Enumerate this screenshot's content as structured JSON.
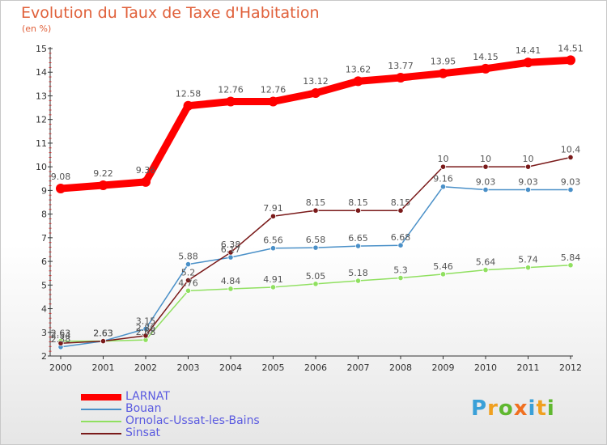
{
  "chart_data": {
    "type": "line",
    "title": "Evolution du Taux de Taxe d'Habitation",
    "subtitle": "(en %)",
    "x": [
      "2000",
      "2001",
      "2002",
      "2003",
      "2004",
      "2005",
      "2006",
      "2007",
      "2008",
      "2009",
      "2010",
      "2011",
      "2012"
    ],
    "ylim": [
      2,
      15
    ],
    "yticks": [
      2,
      3,
      4,
      5,
      6,
      7,
      8,
      9,
      10,
      11,
      12,
      13,
      14,
      15
    ],
    "grid": false,
    "legend_position": "bottom-left",
    "series": [
      {
        "name": "LARNAT",
        "color": "#ff0000",
        "values": [
          9.08,
          9.22,
          9.36,
          12.58,
          12.76,
          12.76,
          13.12,
          13.62,
          13.77,
          13.95,
          14.15,
          14.41,
          14.51
        ],
        "labels": [
          "9.08",
          "9.22",
          "9.36",
          "12.58",
          "12.76",
          "12.76",
          "13.12",
          "13.62",
          "13.77",
          "13.95",
          "14.15",
          "14.41",
          "14.51"
        ]
      },
      {
        "name": "Bouan",
        "color": "#4a90c8",
        "values": [
          2.38,
          2.63,
          3.15,
          5.88,
          6.17,
          6.56,
          6.58,
          6.65,
          6.68,
          9.16,
          9.03,
          9.03,
          9.03
        ],
        "labels": [
          "2.38",
          "2.63",
          "3.15",
          "5.88",
          "6.17",
          "6.56",
          "6.58",
          "6.65",
          "6.68",
          "9.16",
          "9.03",
          "9.03",
          "9.03"
        ]
      },
      {
        "name": "Ornolac-Ussat-les-Bains",
        "color": "#90e060",
        "values": [
          2.63,
          2.63,
          2.68,
          4.76,
          4.84,
          4.91,
          5.05,
          5.18,
          5.3,
          5.46,
          5.64,
          5.74,
          5.84
        ],
        "labels": [
          "2.63",
          "2.63",
          "2.68",
          "4.76",
          "4.84",
          "4.91",
          "5.05",
          "5.18",
          "5.3",
          "5.46",
          "5.64",
          "5.74",
          "5.84"
        ]
      },
      {
        "name": "Sinsat",
        "color": "#7a1a1a",
        "values": [
          2.54,
          2.63,
          2.86,
          5.2,
          6.38,
          7.91,
          8.15,
          8.15,
          8.15,
          10,
          10,
          10,
          10.4
        ],
        "labels": [
          "2.54",
          "2.63",
          "2.86",
          "5.2",
          "6.38",
          "7.91",
          "8.15",
          "8.15",
          "8.15",
          "10",
          "10",
          "10",
          "10.4"
        ]
      }
    ]
  },
  "logo": {
    "letters": [
      "P",
      "r",
      "o",
      "x",
      "i",
      "t",
      "i"
    ],
    "colors": [
      "#3aa0d8",
      "#f0a020",
      "#60b830",
      "#f07020",
      "#3aa0d8",
      "#f0a020",
      "#60b830"
    ]
  }
}
